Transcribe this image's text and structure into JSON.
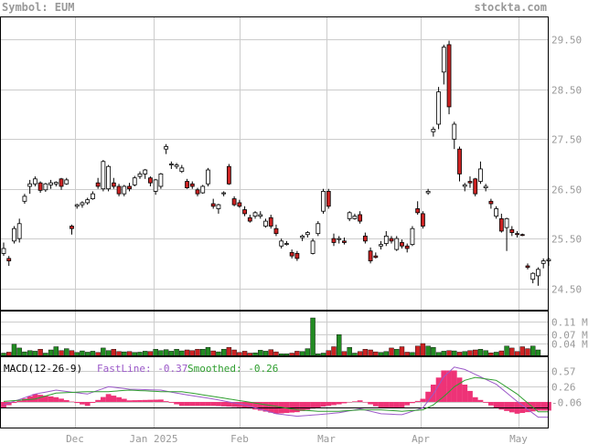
{
  "header": {
    "symbol_label": "Symbol: EUM",
    "site": "stockta.com"
  },
  "colors": {
    "up": "#ffffff",
    "down": "#cc2222",
    "volume_up": "#228b22",
    "volume_down": "#cc2222",
    "macd_fast": "#9b59c8",
    "macd_smooth": "#2e9e2e",
    "histogram": "#ee3377",
    "grid": "#cccccc",
    "text": "#999999"
  },
  "chart_data": [
    {
      "type": "candlestick",
      "title": "Symbol: EUM",
      "x_labels": [
        "Dec",
        "Jan 2025",
        "Feb",
        "Mar",
        "Apr",
        "May"
      ],
      "y_ticks": [
        29.5,
        28.5,
        27.5,
        26.5,
        25.5,
        24.5
      ],
      "ylim": [
        24.05,
        29.95
      ],
      "candles": [
        [
          25.2,
          25.42,
          25.15,
          25.3
        ],
        [
          25.1,
          25.15,
          24.95,
          25.05
        ],
        [
          25.45,
          25.75,
          25.4,
          25.7
        ],
        [
          25.5,
          25.9,
          25.42,
          25.8
        ],
        [
          26.25,
          26.4,
          26.2,
          26.35
        ],
        [
          26.55,
          26.68,
          26.4,
          26.6
        ],
        [
          26.6,
          26.75,
          26.55,
          26.7
        ],
        [
          26.62,
          26.65,
          26.42,
          26.47
        ],
        [
          26.48,
          26.62,
          26.44,
          26.6
        ],
        [
          26.58,
          26.68,
          26.5,
          26.62
        ],
        [
          26.6,
          26.65,
          26.55,
          26.63
        ],
        [
          26.7,
          26.72,
          26.48,
          26.55
        ],
        [
          26.6,
          26.72,
          26.58,
          26.68
        ],
        [
          25.75,
          25.78,
          25.58,
          25.7
        ],
        [
          26.15,
          26.2,
          26.1,
          26.18
        ],
        [
          26.18,
          26.25,
          26.12,
          26.22
        ],
        [
          26.22,
          26.32,
          26.18,
          26.28
        ],
        [
          26.3,
          26.45,
          26.28,
          26.4
        ],
        [
          26.62,
          26.72,
          26.5,
          26.55
        ],
        [
          26.5,
          27.08,
          26.45,
          27.05
        ],
        [
          26.5,
          26.98,
          26.45,
          26.95
        ],
        [
          26.62,
          26.72,
          26.5,
          26.55
        ],
        [
          26.55,
          26.6,
          26.35,
          26.4
        ],
        [
          26.4,
          26.58,
          26.35,
          26.55
        ],
        [
          26.55,
          26.62,
          26.45,
          26.5
        ],
        [
          26.58,
          26.76,
          26.55,
          26.72
        ],
        [
          26.75,
          26.85,
          26.7,
          26.8
        ],
        [
          26.8,
          26.9,
          26.7,
          26.88
        ],
        [
          26.72,
          26.75,
          26.55,
          26.62
        ],
        [
          26.45,
          26.7,
          26.38,
          26.68
        ],
        [
          26.55,
          26.82,
          26.5,
          26.8
        ],
        [
          27.3,
          27.4,
          27.2,
          27.35
        ],
        [
          26.98,
          27.05,
          26.9,
          27.0
        ],
        [
          26.95,
          27.02,
          26.9,
          26.98
        ],
        [
          26.85,
          26.98,
          26.82,
          26.92
        ],
        [
          26.65,
          26.7,
          26.5,
          26.52
        ],
        [
          26.6,
          26.65,
          26.5,
          26.55
        ],
        [
          26.48,
          26.52,
          26.35,
          26.4
        ],
        [
          26.42,
          26.58,
          26.4,
          26.55
        ],
        [
          26.6,
          26.92,
          26.55,
          26.88
        ],
        [
          26.2,
          26.3,
          26.1,
          26.15
        ],
        [
          26.1,
          26.2,
          26.0,
          26.18
        ],
        [
          26.4,
          26.45,
          26.35,
          26.42
        ],
        [
          26.95,
          27.0,
          26.58,
          26.6
        ],
        [
          26.3,
          26.35,
          26.15,
          26.18
        ],
        [
          26.22,
          26.28,
          26.12,
          26.15
        ],
        [
          26.08,
          26.15,
          25.95,
          26.0
        ],
        [
          25.92,
          25.98,
          25.82,
          25.85
        ],
        [
          25.95,
          26.05,
          25.9,
          26.02
        ],
        [
          25.95,
          26.05,
          25.9,
          25.98
        ],
        [
          25.75,
          25.9,
          25.72,
          25.85
        ],
        [
          25.92,
          25.98,
          25.7,
          25.75
        ],
        [
          25.7,
          25.78,
          25.55,
          25.6
        ],
        [
          25.35,
          25.5,
          25.3,
          25.45
        ],
        [
          25.4,
          25.45,
          25.36,
          25.4
        ],
        [
          25.22,
          25.28,
          25.1,
          25.15
        ],
        [
          25.2,
          25.25,
          25.05,
          25.1
        ],
        [
          25.52,
          25.58,
          25.45,
          25.55
        ],
        [
          25.58,
          25.65,
          25.52,
          25.62
        ],
        [
          25.2,
          25.5,
          25.18,
          25.45
        ],
        [
          25.6,
          25.85,
          25.55,
          25.8
        ],
        [
          26.05,
          26.5,
          26.0,
          26.45
        ],
        [
          26.45,
          26.5,
          26.1,
          26.15
        ],
        [
          25.5,
          25.6,
          25.35,
          25.42
        ],
        [
          25.48,
          25.55,
          25.4,
          25.5
        ],
        [
          25.45,
          25.52,
          25.38,
          25.42
        ],
        [
          25.9,
          26.05,
          25.85,
          26.02
        ],
        [
          25.9,
          26.0,
          25.88,
          25.95
        ],
        [
          25.98,
          26.05,
          25.8,
          25.85
        ],
        [
          25.55,
          25.62,
          25.4,
          25.45
        ],
        [
          25.25,
          25.32,
          25.0,
          25.05
        ],
        [
          25.15,
          25.22,
          25.1,
          25.12
        ],
        [
          25.35,
          25.45,
          25.28,
          25.38
        ],
        [
          25.4,
          25.65,
          25.35,
          25.55
        ],
        [
          25.5,
          25.55,
          25.4,
          25.45
        ],
        [
          25.28,
          25.55,
          25.25,
          25.5
        ],
        [
          25.42,
          25.48,
          25.3,
          25.35
        ],
        [
          25.35,
          25.4,
          25.22,
          25.3
        ],
        [
          25.38,
          25.75,
          25.35,
          25.7
        ],
        [
          26.1,
          26.25,
          25.98,
          26.02
        ],
        [
          26.0,
          26.05,
          25.7,
          25.75
        ],
        [
          26.42,
          26.5,
          26.38,
          26.45
        ],
        [
          27.65,
          27.75,
          27.55,
          27.7
        ],
        [
          27.8,
          28.55,
          27.7,
          28.45
        ],
        [
          28.85,
          29.4,
          28.6,
          29.35
        ],
        [
          29.4,
          29.48,
          28.0,
          28.15
        ],
        [
          27.5,
          27.85,
          27.3,
          27.8
        ],
        [
          27.3,
          27.35,
          26.65,
          26.8
        ],
        [
          26.55,
          26.62,
          26.45,
          26.58
        ],
        [
          26.65,
          26.75,
          26.52,
          26.62
        ],
        [
          26.7,
          26.72,
          26.35,
          26.4
        ],
        [
          26.65,
          27.05,
          26.6,
          26.9
        ],
        [
          26.52,
          26.6,
          26.45,
          26.55
        ],
        [
          26.25,
          26.3,
          26.1,
          26.2
        ],
        [
          25.95,
          26.15,
          25.9,
          26.1
        ],
        [
          25.9,
          26.0,
          25.62,
          25.65
        ],
        [
          25.72,
          25.92,
          25.25,
          25.9
        ],
        [
          25.68,
          25.75,
          25.55,
          25.62
        ],
        [
          25.6,
          25.65,
          25.52,
          25.58
        ],
        [
          25.58,
          25.6,
          25.55,
          25.57
        ],
        [
          24.95,
          25.0,
          24.88,
          24.92
        ],
        [
          24.68,
          24.82,
          24.6,
          24.8
        ],
        [
          24.75,
          24.92,
          24.55,
          24.88
        ],
        [
          25.0,
          25.1,
          24.9,
          25.05
        ],
        [
          25.05,
          25.12,
          24.95,
          25.08
        ]
      ]
    },
    {
      "type": "bar",
      "title": "Volume",
      "y_ticks": [
        "0.11 M",
        "0.07 M",
        "0.04 M"
      ],
      "y_tick_values": [
        0.11,
        0.07,
        0.04
      ],
      "ylim": [
        0,
        0.14
      ],
      "values": [
        0.01,
        0.013,
        0.038,
        0.026,
        0.014,
        0.018,
        0.016,
        0.022,
        0.01,
        0.02,
        0.03,
        0.018,
        0.024,
        0.018,
        0.012,
        0.017,
        0.013,
        0.016,
        0.012,
        0.026,
        0.018,
        0.022,
        0.015,
        0.014,
        0.015,
        0.012,
        0.013,
        0.016,
        0.015,
        0.022,
        0.018,
        0.021,
        0.016,
        0.022,
        0.017,
        0.02,
        0.018,
        0.022,
        0.022,
        0.028,
        0.017,
        0.014,
        0.022,
        0.028,
        0.02,
        0.012,
        0.016,
        0.01,
        0.011,
        0.019,
        0.016,
        0.021,
        0.014,
        0.008,
        0.008,
        0.01,
        0.016,
        0.015,
        0.024,
        0.018,
        0.008,
        0.01,
        0.018,
        0.03,
        0.012,
        0.015,
        0.028,
        0.01,
        0.015,
        0.022,
        0.02,
        0.014,
        0.012,
        0.015,
        0.026,
        0.022,
        0.03,
        0.013,
        0.012,
        0.032,
        0.04,
        0.032,
        0.028,
        0.012,
        0.016,
        0.018,
        0.017,
        0.013,
        0.015,
        0.018,
        0.02,
        0.022,
        0.018,
        0.011,
        0.013,
        0.017,
        0.032,
        0.026,
        0.015,
        0.03,
        0.024,
        0.032,
        0.02
      ],
      "spikes": [
        [
          59,
          0.12
        ],
        [
          64,
          0.068
        ]
      ]
    },
    {
      "type": "line",
      "title": "MACD(12-26-9)",
      "series_labels": [
        "FastLine: -0.37",
        "Smoothed: -0.26"
      ],
      "y_ticks": [
        0.57,
        0.26,
        -0.06
      ],
      "ylim": [
        -0.6,
        0.85
      ],
      "x": [
        0,
        6,
        10,
        16,
        20,
        24,
        30,
        34,
        40,
        46,
        52,
        56,
        60,
        64,
        68,
        72,
        76,
        80,
        82,
        84,
        86,
        88,
        90,
        94,
        98,
        102
      ],
      "fast": [
        -0.12,
        0.1,
        0.18,
        0.1,
        0.25,
        0.2,
        0.18,
        0.1,
        0.0,
        -0.12,
        -0.3,
        -0.35,
        -0.32,
        -0.28,
        -0.2,
        -0.3,
        -0.32,
        -0.18,
        0.1,
        0.45,
        0.65,
        0.6,
        0.5,
        0.3,
        -0.05,
        -0.37
      ],
      "smooth": [
        -0.05,
        0.0,
        0.12,
        0.15,
        0.15,
        0.18,
        0.15,
        0.15,
        0.05,
        -0.05,
        -0.15,
        -0.22,
        -0.25,
        -0.25,
        -0.22,
        -0.22,
        -0.25,
        -0.22,
        -0.12,
        0.05,
        0.25,
        0.38,
        0.44,
        0.38,
        0.1,
        -0.26
      ]
    }
  ]
}
